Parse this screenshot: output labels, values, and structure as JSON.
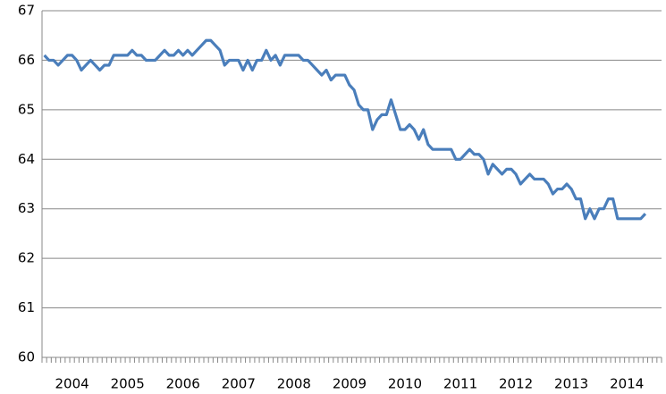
{
  "chart_data": {
    "type": "line",
    "categories": [
      null,
      null,
      null,
      null,
      null,
      null,
      "2004",
      null,
      null,
      null,
      null,
      null,
      null,
      null,
      null,
      null,
      null,
      null,
      "2005",
      null,
      null,
      null,
      null,
      null,
      null,
      null,
      null,
      null,
      null,
      null,
      "2006",
      null,
      null,
      null,
      null,
      null,
      null,
      null,
      null,
      null,
      null,
      null,
      "2007",
      null,
      null,
      null,
      null,
      null,
      null,
      null,
      null,
      null,
      null,
      null,
      "2008",
      null,
      null,
      null,
      null,
      null,
      null,
      null,
      null,
      null,
      null,
      null,
      "2009",
      null,
      null,
      null,
      null,
      null,
      null,
      null,
      null,
      null,
      null,
      null,
      "2010",
      null,
      null,
      null,
      null,
      null,
      null,
      null,
      null,
      null,
      null,
      null,
      "2011",
      null,
      null,
      null,
      null,
      null,
      null,
      null,
      null,
      null,
      null,
      null,
      "2012",
      null,
      null,
      null,
      null,
      null,
      null,
      null,
      null,
      null,
      null,
      null,
      "2013",
      null,
      null,
      null,
      null,
      null,
      null,
      null,
      null,
      null,
      null,
      null,
      "2014",
      null,
      null,
      null,
      null,
      null,
      null,
      null
    ],
    "series": [
      {
        "color": "#4a7ebb",
        "values": [
          66.1,
          66.0,
          66.0,
          65.9,
          66.0,
          66.1,
          66.1,
          66.0,
          65.8,
          65.9,
          66.0,
          65.9,
          65.8,
          65.9,
          65.9,
          66.1,
          66.1,
          66.1,
          66.1,
          66.2,
          66.1,
          66.1,
          66.0,
          66.0,
          66.0,
          66.1,
          66.2,
          66.1,
          66.1,
          66.2,
          66.1,
          66.2,
          66.1,
          66.2,
          66.3,
          66.4,
          66.4,
          66.3,
          66.2,
          65.9,
          66.0,
          66.0,
          66.0,
          65.8,
          66.0,
          65.8,
          66.0,
          66.0,
          66.2,
          66.0,
          66.1,
          65.9,
          66.1,
          66.1,
          66.1,
          66.1,
          66.0,
          66.0,
          65.9,
          65.8,
          65.7,
          65.8,
          65.6,
          65.7,
          65.7,
          65.7,
          65.5,
          65.4,
          65.1,
          65.0,
          65.0,
          64.6,
          64.8,
          64.9,
          64.9,
          65.2,
          64.9,
          64.6,
          64.6,
          64.7,
          64.6,
          64.4,
          64.6,
          64.3,
          64.2,
          64.2,
          64.2,
          64.2,
          64.2,
          64.0,
          64.0,
          64.1,
          64.2,
          64.1,
          64.1,
          64.0,
          63.7,
          63.9,
          63.8,
          63.7,
          63.8,
          63.8,
          63.7,
          63.5,
          63.6,
          63.7,
          63.6,
          63.6,
          63.6,
          63.5,
          63.3,
          63.4,
          63.4,
          63.5,
          63.4,
          63.2,
          63.2,
          62.8,
          63.0,
          62.8,
          63.0,
          63.0,
          63.2,
          63.2,
          62.8,
          62.8,
          62.8,
          62.8,
          62.8,
          62.8,
          62.9,
          null,
          null,
          null
        ]
      }
    ],
    "ylim": [
      60,
      67
    ],
    "yticks": [
      60,
      61,
      62,
      63,
      64,
      65,
      66,
      67
    ],
    "grid": true
  }
}
